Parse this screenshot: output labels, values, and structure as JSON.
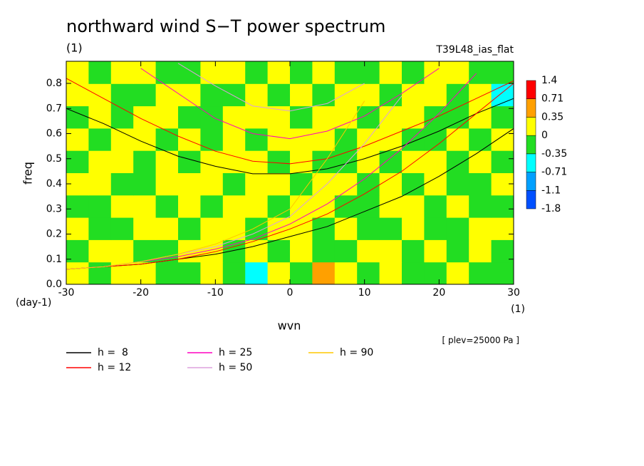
{
  "chart_data": {
    "type": "contour",
    "title": "northward wind S−T power spectrum",
    "subtitle": "(1)",
    "run_label": "T39L48_ias_flat",
    "x_label": "wvn",
    "x_unit": "(1)",
    "y_label": "freq",
    "y_unit": "(day-1)",
    "note": "[ plev=25000 Pa ]",
    "xlim": [
      -30,
      30
    ],
    "xticks": [
      -30,
      -20,
      -10,
      0,
      10,
      20,
      30
    ],
    "ylim": [
      0,
      0.888
    ],
    "yticks": [
      {
        "value": 0,
        "label": "0.0"
      },
      0.1,
      0.2,
      0.3,
      0.4,
      0.5,
      0.6,
      0.7,
      0.8
    ],
    "levels": [
      -1.8,
      -1.1,
      -0.71,
      -0.35,
      0,
      0.35,
      0.71,
      1.4
    ],
    "level_colors": [
      "#0050ff",
      "#00a0ff",
      "#00ffff",
      "#22dd22",
      "#ffff00",
      "#ffa000",
      "#ff0000"
    ],
    "field": [
      [
        0.2,
        -0.2,
        0.2,
        0.2,
        -0.2,
        -0.2,
        0.2,
        -0.2,
        -0.5,
        0.2,
        -0.2,
        0.5,
        0.2,
        -0.2,
        0.2,
        -0.2,
        -0.2,
        0.2,
        -0.2,
        -0.2
      ],
      [
        -0.2,
        0.2,
        0.2,
        -0.2,
        -0.2,
        0.2,
        0.2,
        -0.2,
        0.2,
        -0.2,
        0.2,
        -0.2,
        -0.2,
        0.2,
        0.2,
        -0.2,
        0.2,
        -0.2,
        0.2,
        -0.2
      ],
      [
        0.2,
        -0.2,
        -0.2,
        0.2,
        0.2,
        -0.2,
        0.2,
        0.2,
        -0.2,
        0.2,
        0.2,
        -0.2,
        0.2,
        -0.2,
        -0.2,
        0.2,
        -0.2,
        -0.2,
        0.2,
        0.2
      ],
      [
        -0.2,
        -0.2,
        0.2,
        0.2,
        -0.2,
        0.2,
        -0.2,
        0.2,
        0.2,
        -0.2,
        0.2,
        0.2,
        -0.2,
        -0.2,
        0.2,
        0.2,
        -0.2,
        0.2,
        -0.2,
        -0.2
      ],
      [
        0.2,
        0.2,
        -0.2,
        -0.2,
        0.2,
        0.2,
        0.2,
        -0.2,
        0.2,
        0.2,
        -0.2,
        0.2,
        0.2,
        -0.2,
        0.2,
        -0.2,
        0.2,
        -0.2,
        -0.2,
        0.2
      ],
      [
        -0.2,
        0.2,
        0.2,
        -0.2,
        0.2,
        -0.2,
        0.2,
        0.2,
        0.2,
        -0.2,
        0.2,
        -0.2,
        -0.2,
        0.2,
        -0.2,
        0.2,
        0.2,
        -0.2,
        0.2,
        -0.2
      ],
      [
        0.2,
        -0.2,
        0.2,
        0.2,
        -0.2,
        0.2,
        -0.2,
        0.2,
        -0.2,
        0.2,
        0.2,
        0.2,
        -0.2,
        0.2,
        0.2,
        -0.2,
        -0.2,
        0.2,
        -0.2,
        0.2
      ],
      [
        -0.2,
        0.2,
        -0.2,
        0.2,
        0.2,
        -0.2,
        -0.2,
        0.2,
        0.2,
        0.2,
        -0.2,
        0.2,
        0.2,
        -0.2,
        0.2,
        0.2,
        -0.2,
        -0.2,
        0.2,
        -0.2
      ],
      [
        0.2,
        0.2,
        -0.2,
        -0.2,
        0.2,
        0.2,
        -0.2,
        -0.2,
        0.2,
        -0.2,
        0.2,
        -0.2,
        0.2,
        0.2,
        -0.2,
        0.2,
        0.2,
        -0.2,
        0.2,
        -0.5
      ],
      [
        0.2,
        -0.2,
        0.2,
        0.2,
        -0.2,
        -0.2,
        0.2,
        0.2,
        -0.2,
        0.2,
        -0.2,
        0.2,
        -0.2,
        -0.2,
        0.2,
        -0.2,
        0.2,
        0.2,
        -0.2,
        -0.2
      ]
    ],
    "curve_x": [
      -30,
      -25,
      -20,
      -15,
      -10,
      -5,
      0,
      5,
      10,
      15,
      20,
      25,
      30
    ],
    "series": [
      {
        "name": "h =  8",
        "color": "#000000",
        "curves": [
          [
            0.7,
            0.64,
            0.57,
            0.51,
            0.47,
            0.44,
            0.44,
            0.46,
            0.5,
            0.55,
            0.61,
            0.68,
            0.74
          ],
          [
            0.06,
            0.07,
            0.08,
            0.1,
            0.12,
            0.15,
            0.19,
            0.23,
            0.29,
            0.35,
            0.43,
            0.52,
            0.62
          ]
        ]
      },
      {
        "name": "h = 12",
        "color": "#ff0000",
        "curves": [
          [
            0.82,
            0.74,
            0.66,
            0.59,
            0.53,
            0.49,
            0.48,
            0.5,
            0.55,
            0.61,
            0.67,
            0.74,
            0.81
          ],
          [
            0.06,
            0.07,
            0.08,
            0.1,
            0.13,
            0.17,
            0.22,
            0.28,
            0.36,
            0.45,
            0.56,
            0.68,
            0.8
          ]
        ]
      },
      {
        "name": "h = 25",
        "color": "#ff00c0",
        "curves": [
          [
            null,
            null,
            0.86,
            0.76,
            0.66,
            0.6,
            0.58,
            0.61,
            0.67,
            0.76,
            0.86,
            null,
            null
          ],
          [
            0.06,
            0.07,
            0.09,
            0.11,
            0.14,
            0.18,
            0.24,
            0.32,
            0.42,
            0.54,
            0.68,
            0.84,
            null
          ]
        ]
      },
      {
        "name": "h = 50",
        "color": "#dda0dd",
        "curves": [
          [
            null,
            null,
            null,
            0.88,
            0.79,
            0.71,
            0.69,
            0.72,
            0.8,
            null,
            null,
            null,
            null
          ],
          [
            0.06,
            0.07,
            0.09,
            0.12,
            0.15,
            0.2,
            0.27,
            0.4,
            0.56,
            0.75,
            null,
            null,
            null
          ]
        ]
      },
      {
        "name": "h = 90",
        "color": "#ffc800",
        "curves": [
          [
            0.06,
            0.07,
            0.09,
            0.12,
            0.16,
            0.22,
            0.3,
            0.5,
            0.73,
            null,
            null,
            null,
            null
          ]
        ]
      }
    ]
  }
}
